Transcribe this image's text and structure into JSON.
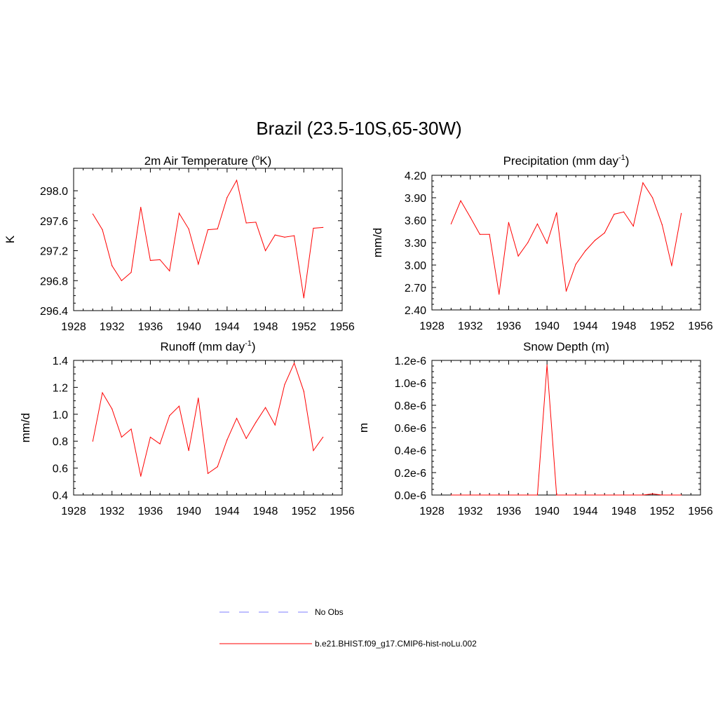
{
  "title": "Brazil (23.5-10S,65-30W)",
  "colors": {
    "model": "#ff0000",
    "obs": "#9999ff"
  },
  "legend": {
    "obs_label": "No Obs",
    "model_label": "b.e21.BHIST.f09_g17.CMIP6-hist-noLu.002"
  },
  "chart_data": [
    {
      "type": "line",
      "title": "2m Air Temperature (",
      "title_sup": "o",
      "title_tail": "K)",
      "ylabel": "K",
      "xlim": [
        1928,
        1956
      ],
      "x_ticks": [
        "1928",
        "1932",
        "1936",
        "1940",
        "1944",
        "1948",
        "1952",
        "1956"
      ],
      "ylim": [
        296.4,
        298.3
      ],
      "y_ticks": [
        "296.4",
        "296.8",
        "297.2",
        "297.6",
        "298.0"
      ],
      "y_tick_values": [
        296.4,
        296.8,
        297.2,
        297.6,
        298.0
      ],
      "grid": false,
      "series": [
        {
          "x": [
            1930,
            1931,
            1932,
            1933,
            1934,
            1935,
            1936,
            1937,
            1938,
            1939,
            1940,
            1941,
            1942,
            1943,
            1944,
            1945,
            1946,
            1947,
            1948,
            1949,
            1950,
            1951,
            1952,
            1953,
            1954
          ],
          "y": [
            297.69,
            297.48,
            297.0,
            296.8,
            296.91,
            297.78,
            297.07,
            297.08,
            296.93,
            297.7,
            297.49,
            297.02,
            297.48,
            297.49,
            297.91,
            298.14,
            297.57,
            297.58,
            297.2,
            297.41,
            297.38,
            297.4,
            296.57,
            297.5,
            297.51
          ]
        }
      ]
    },
    {
      "type": "line",
      "title": "Precipitation (mm day",
      "title_sup": "-1",
      "title_tail": ")",
      "ylabel": "mm/d",
      "xlim": [
        1928,
        1956
      ],
      "x_ticks": [
        "1928",
        "1932",
        "1936",
        "1940",
        "1944",
        "1948",
        "1952",
        "1956"
      ],
      "ylim": [
        2.4,
        4.2
      ],
      "y_ticks": [
        "2.40",
        "2.70",
        "3.00",
        "3.30",
        "3.60",
        "3.90",
        "4.20"
      ],
      "y_tick_values": [
        2.4,
        2.7,
        3.0,
        3.3,
        3.6,
        3.9,
        4.2
      ],
      "grid": false,
      "series": [
        {
          "x": [
            1930,
            1931,
            1932,
            1933,
            1934,
            1935,
            1936,
            1937,
            1938,
            1939,
            1940,
            1941,
            1942,
            1943,
            1944,
            1945,
            1946,
            1947,
            1948,
            1949,
            1950,
            1951,
            1952,
            1953,
            1954
          ],
          "y": [
            3.55,
            3.86,
            3.64,
            3.41,
            3.41,
            2.61,
            3.57,
            3.12,
            3.3,
            3.55,
            3.29,
            3.7,
            2.65,
            3.01,
            3.19,
            3.33,
            3.43,
            3.68,
            3.71,
            3.52,
            4.1,
            3.9,
            3.54,
            2.99,
            3.69
          ]
        }
      ]
    },
    {
      "type": "line",
      "title": "Runoff (mm day",
      "title_sup": "-1",
      "title_tail": ")",
      "ylabel": "mm/d",
      "xlim": [
        1928,
        1956
      ],
      "x_ticks": [
        "1928",
        "1932",
        "1936",
        "1940",
        "1944",
        "1948",
        "1952",
        "1956"
      ],
      "ylim": [
        0.4,
        1.4
      ],
      "y_ticks": [
        "0.4",
        "0.6",
        "0.8",
        "1.0",
        "1.2",
        "1.4"
      ],
      "y_tick_values": [
        0.4,
        0.6,
        0.8,
        1.0,
        1.2,
        1.4
      ],
      "grid": false,
      "series": [
        {
          "x": [
            1930,
            1931,
            1932,
            1933,
            1934,
            1935,
            1936,
            1937,
            1938,
            1939,
            1940,
            1941,
            1942,
            1943,
            1944,
            1945,
            1946,
            1947,
            1948,
            1949,
            1950,
            1951,
            1952,
            1953,
            1954
          ],
          "y": [
            0.8,
            1.16,
            1.04,
            0.83,
            0.89,
            0.54,
            0.83,
            0.78,
            0.99,
            1.06,
            0.73,
            1.12,
            0.56,
            0.61,
            0.81,
            0.97,
            0.82,
            0.94,
            1.05,
            0.92,
            1.22,
            1.38,
            1.17,
            0.73,
            0.83
          ]
        }
      ]
    },
    {
      "type": "line",
      "title": "Snow Depth (m)",
      "title_sup": "",
      "title_tail": "",
      "ylabel": "m",
      "xlim": [
        1928,
        1956
      ],
      "x_ticks": [
        "1928",
        "1932",
        "1936",
        "1940",
        "1944",
        "1948",
        "1952",
        "1956"
      ],
      "ylim": [
        0,
        1.2e-06
      ],
      "y_ticks": [
        "0.0e-6",
        "0.2e-6",
        "0.4e-6",
        "0.6e-6",
        "0.8e-6",
        "1.0e-6",
        "1.2e-6"
      ],
      "y_tick_values": [
        0,
        2e-07,
        4e-07,
        6e-07,
        8e-07,
        1e-06,
        1.2e-06
      ],
      "grid": false,
      "series": [
        {
          "x": [
            1930,
            1931,
            1932,
            1933,
            1934,
            1935,
            1936,
            1937,
            1938,
            1939,
            1940,
            1941,
            1942,
            1943,
            1944,
            1945,
            1946,
            1947,
            1948,
            1949,
            1950,
            1951,
            1952,
            1953,
            1954
          ],
          "y": [
            0,
            0,
            0,
            0,
            0,
            0,
            0,
            0,
            0,
            0,
            1.16e-06,
            0,
            0,
            0,
            0,
            0,
            0,
            0,
            0,
            0,
            0,
            1e-08,
            0,
            0,
            0
          ]
        }
      ]
    }
  ]
}
